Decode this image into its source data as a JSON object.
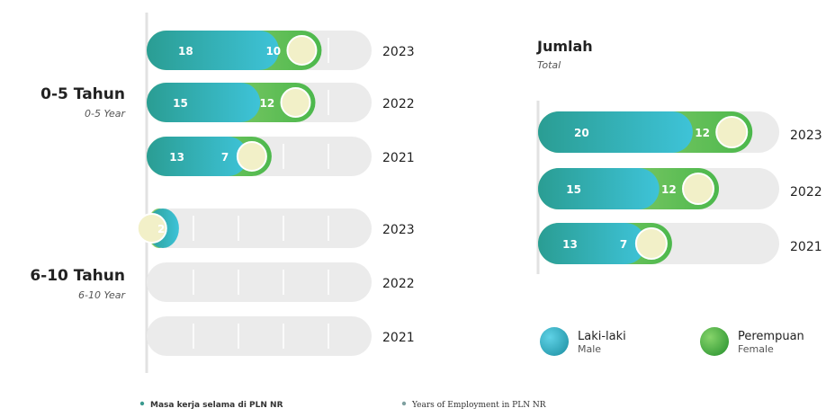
{
  "colors": {
    "male_start": "#2a9d93",
    "male_end": "#3ec3d8",
    "female_start": "#a4d47a",
    "female_end": "#4cb84c",
    "track": "#ebebeb",
    "knob": "#f2f0c8",
    "text": "#222222",
    "subtext": "#555555"
  },
  "chart_data": [
    {
      "type": "bar",
      "stacked": true,
      "orientation": "horizontal",
      "title": "",
      "groups": [
        {
          "label": "0-5 Tahun",
          "sublabel": "0-5 Year",
          "rows": [
            {
              "year": "2023",
              "male": 18,
              "female": 10
            },
            {
              "year": "2022",
              "male": 15,
              "female": 12
            },
            {
              "year": "2021",
              "male": 13,
              "female": 7
            }
          ]
        },
        {
          "label": "6-10 Tahun",
          "sublabel": "6-10 Year",
          "rows": [
            {
              "year": "2023",
              "male": 2,
              "female": 2
            },
            {
              "year": "2022",
              "male": 0,
              "female": 0
            },
            {
              "year": "2021",
              "male": 0,
              "female": 0
            }
          ]
        }
      ],
      "max": 36,
      "grid": true
    },
    {
      "type": "bar",
      "stacked": true,
      "orientation": "horizontal",
      "title": "Jumlah",
      "subtitle": "Total",
      "rows": [
        {
          "year": "2023",
          "male": 20,
          "female": 12
        },
        {
          "year": "2022",
          "male": 15,
          "female": 12
        },
        {
          "year": "2021",
          "male": 13,
          "female": 7
        }
      ],
      "max": 36,
      "grid": false
    }
  ],
  "legend": [
    {
      "label": "Laki-laki",
      "sublabel": "Male",
      "series": "male"
    },
    {
      "label": "Perempuan",
      "sublabel": "Female",
      "series": "female"
    }
  ],
  "footnotes": [
    "Masa kerja selama di PLN NR",
    "Years of Employment in PLN NR"
  ]
}
